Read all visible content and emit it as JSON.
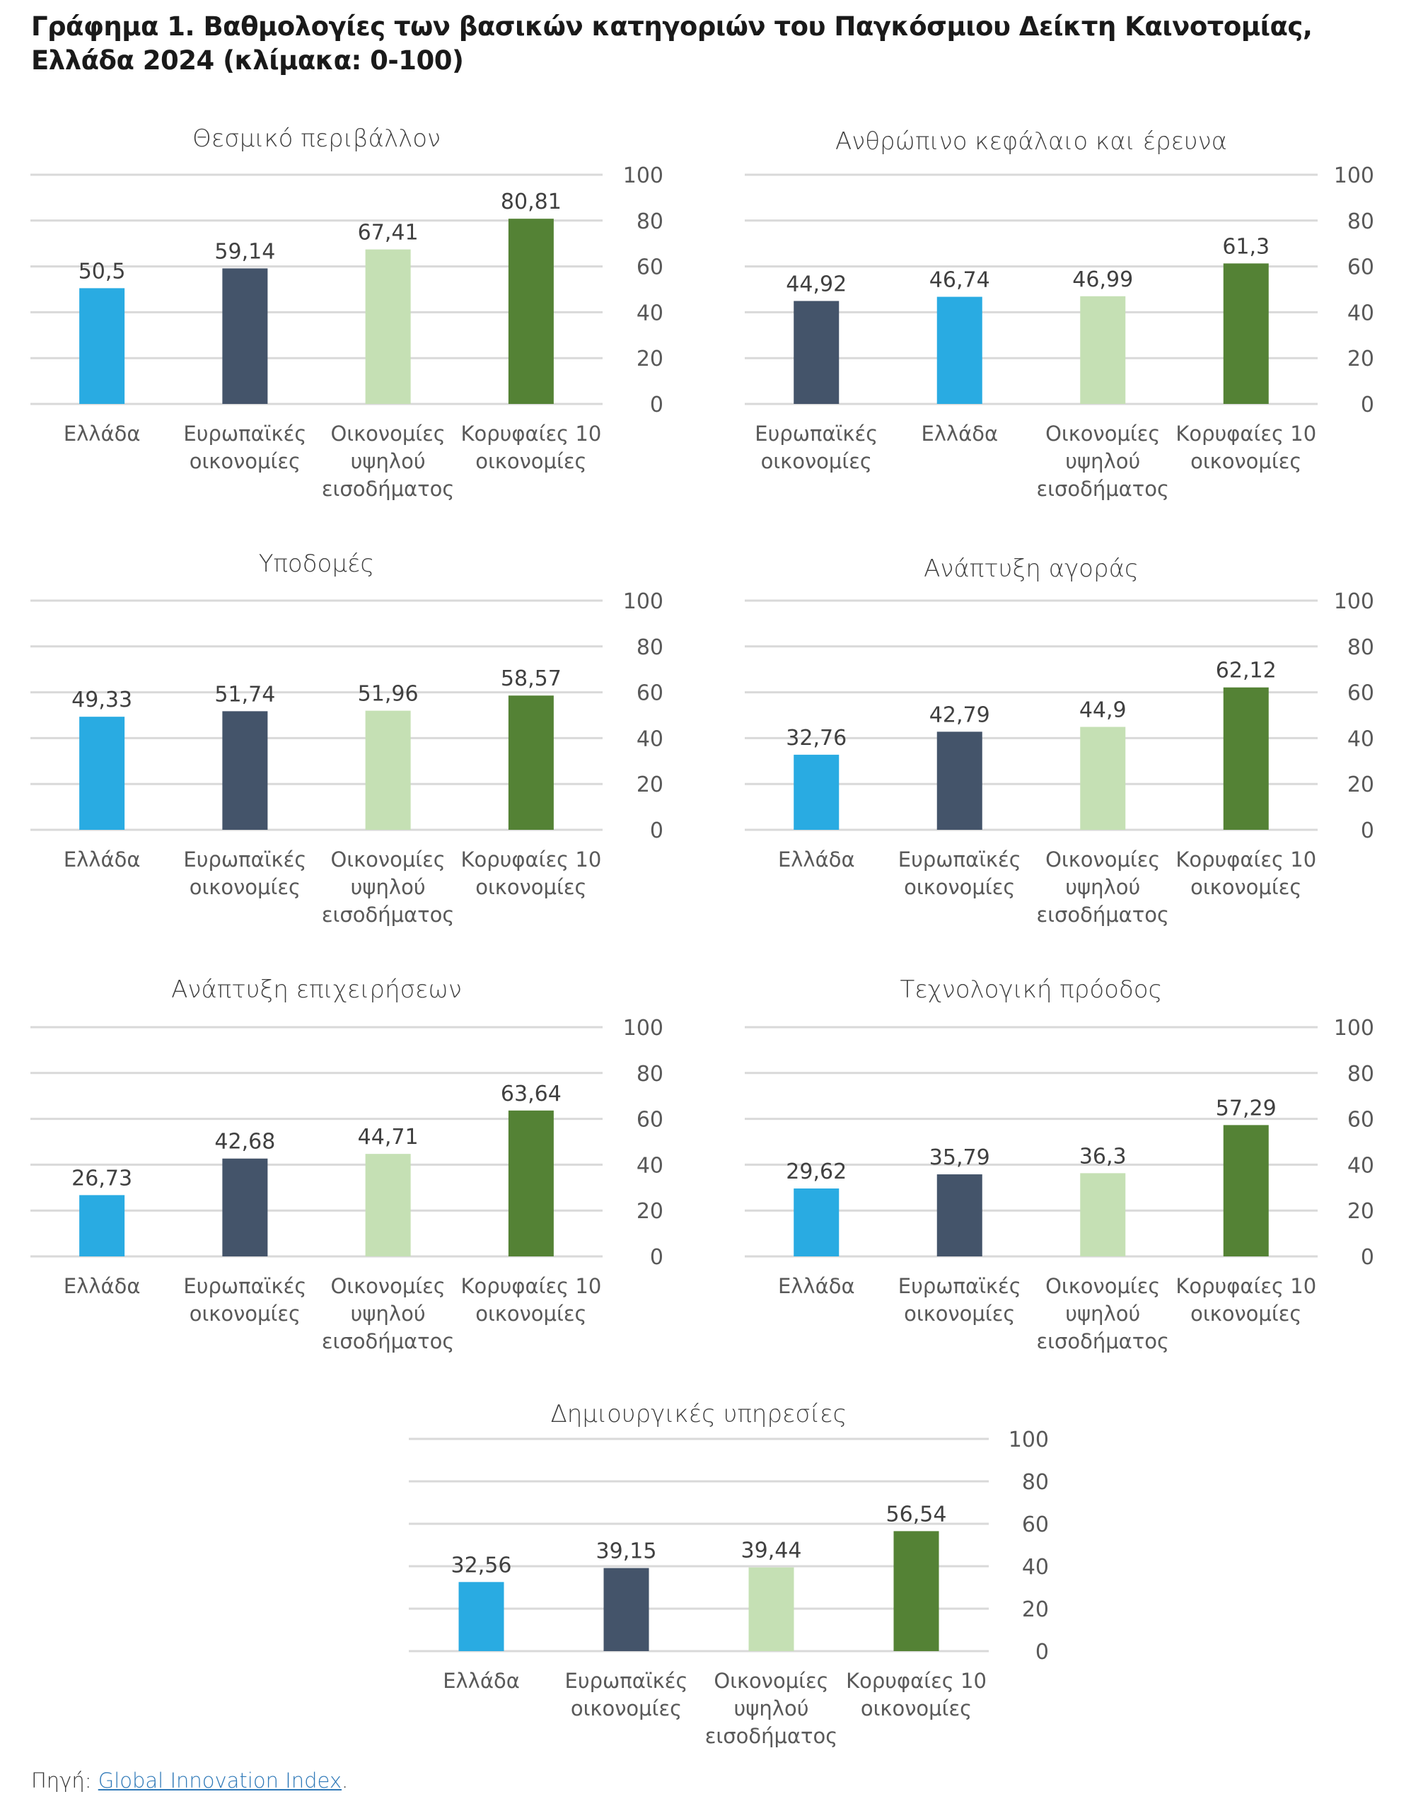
{
  "figure": {
    "title_line1": "Γράφημα 1. Βαθμολογίες των βασικών κατηγοριών του Παγκόσμιου Δείκτη Καινοτομίας,",
    "title_line2": "Ελλάδα 2024 (κλίμακα: 0-100)",
    "source_label": "Πηγή:",
    "source_link": "Global Innovation Index",
    "source_suffix": "."
  },
  "colors": {
    "Ελλάδα": "#29abe2",
    "Ευρωπαϊκές οικονομίες": "#44546a",
    "Οικονομίες υψηλού εισοδήματος": "#c5e0b4",
    "Κορυφαίες 10 οικονομίες": "#548235",
    "gridline": "#d9d9d9",
    "text": "#404040"
  },
  "chart_data": [
    {
      "type": "bar",
      "title": "Θεσμικό περιβάλλον",
      "categories": [
        [
          "Ελλάδα"
        ],
        [
          "Ευρωπαϊκές",
          "οικονομίες"
        ],
        [
          "Οικονομίες",
          "υψηλού",
          "εισοδήματος"
        ],
        [
          "Κορυφαίες 10",
          "οικονομίες"
        ]
      ],
      "series_keys": [
        "Ελλάδα",
        "Ευρωπαϊκές οικονομίες",
        "Οικονομίες υψηλού εισοδήματος",
        "Κορυφαίες 10 οικονομίες"
      ],
      "values": [
        50.5,
        59.14,
        67.41,
        80.81
      ],
      "value_labels": [
        "50,5",
        "59,14",
        "67,41",
        "80,81"
      ],
      "ylim": [
        0,
        100
      ],
      "yticks": [
        0,
        20,
        40,
        60,
        80,
        100
      ],
      "yaxis_position": "right",
      "grid": true
    },
    {
      "type": "bar",
      "title": "Ανθρώπινο κεφάλαιο και έρευνα",
      "categories": [
        [
          "Ευρωπαϊκές",
          "οικονομίες"
        ],
        [
          "Ελλάδα"
        ],
        [
          "Οικονομίες",
          "υψηλού",
          "εισοδήματος"
        ],
        [
          "Κορυφαίες 10",
          "οικονομίες"
        ]
      ],
      "series_keys": [
        "Ευρωπαϊκές οικονομίες",
        "Ελλάδα",
        "Οικονομίες υψηλού εισοδήματος",
        "Κορυφαίες 10 οικονομίες"
      ],
      "values": [
        44.92,
        46.74,
        46.99,
        61.3
      ],
      "value_labels": [
        "44,92",
        "46,74",
        "46,99",
        "61,3"
      ],
      "ylim": [
        0,
        100
      ],
      "yticks": [
        0,
        20,
        40,
        60,
        80,
        100
      ],
      "yaxis_position": "right",
      "grid": true
    },
    {
      "type": "bar",
      "title": "Υποδομές",
      "categories": [
        [
          "Ελλάδα"
        ],
        [
          "Ευρωπαϊκές",
          "οικονομίες"
        ],
        [
          "Οικονομίες",
          "υψηλού",
          "εισοδήματος"
        ],
        [
          "Κορυφαίες 10",
          "οικονομίες"
        ]
      ],
      "series_keys": [
        "Ελλάδα",
        "Ευρωπαϊκές οικονομίες",
        "Οικονομίες υψηλού εισοδήματος",
        "Κορυφαίες 10 οικονομίες"
      ],
      "values": [
        49.33,
        51.74,
        51.96,
        58.57
      ],
      "value_labels": [
        "49,33",
        "51,74",
        "51,96",
        "58,57"
      ],
      "ylim": [
        0,
        100
      ],
      "yticks": [
        0,
        20,
        40,
        60,
        80,
        100
      ],
      "yaxis_position": "right",
      "grid": true
    },
    {
      "type": "bar",
      "title": "Ανάπτυξη αγοράς",
      "categories": [
        [
          "Ελλάδα"
        ],
        [
          "Ευρωπαϊκές",
          "οικονομίες"
        ],
        [
          "Οικονομίες",
          "υψηλού",
          "εισοδήματος"
        ],
        [
          "Κορυφαίες 10",
          "οικονομίες"
        ]
      ],
      "series_keys": [
        "Ελλάδα",
        "Ευρωπαϊκές οικονομίες",
        "Οικονομίες υψηλού εισοδήματος",
        "Κορυφαίες 10 οικονομίες"
      ],
      "values": [
        32.76,
        42.79,
        44.9,
        62.12
      ],
      "value_labels": [
        "32,76",
        "42,79",
        "44,9",
        "62,12"
      ],
      "ylim": [
        0,
        100
      ],
      "yticks": [
        0,
        20,
        40,
        60,
        80,
        100
      ],
      "yaxis_position": "right",
      "grid": true
    },
    {
      "type": "bar",
      "title": "Ανάπτυξη επιχειρήσεων",
      "categories": [
        [
          "Ελλάδα"
        ],
        [
          "Ευρωπαϊκές",
          "οικονομίες"
        ],
        [
          "Οικονομίες",
          "υψηλού",
          "εισοδήματος"
        ],
        [
          "Κορυφαίες 10",
          "οικονομίες"
        ]
      ],
      "series_keys": [
        "Ελλάδα",
        "Ευρωπαϊκές οικονομίες",
        "Οικονομίες υψηλού εισοδήματος",
        "Κορυφαίες 10 οικονομίες"
      ],
      "values": [
        26.73,
        42.68,
        44.71,
        63.64
      ],
      "value_labels": [
        "26,73",
        "42,68",
        "44,71",
        "63,64"
      ],
      "ylim": [
        0,
        100
      ],
      "yticks": [
        0,
        20,
        40,
        60,
        80,
        100
      ],
      "yaxis_position": "right",
      "grid": true
    },
    {
      "type": "bar",
      "title": "Τεχνολογική πρόοδος",
      "categories": [
        [
          "Ελλάδα"
        ],
        [
          "Ευρωπαϊκές",
          "οικονομίες"
        ],
        [
          "Οικονομίες",
          "υψηλού",
          "εισοδήματος"
        ],
        [
          "Κορυφαίες 10",
          "οικονομίες"
        ]
      ],
      "series_keys": [
        "Ελλάδα",
        "Ευρωπαϊκές οικονομίες",
        "Οικονομίες υψηλού εισοδήματος",
        "Κορυφαίες 10 οικονομίες"
      ],
      "values": [
        29.62,
        35.79,
        36.3,
        57.29
      ],
      "value_labels": [
        "29,62",
        "35,79",
        "36,3",
        "57,29"
      ],
      "ylim": [
        0,
        100
      ],
      "yticks": [
        0,
        20,
        40,
        60,
        80,
        100
      ],
      "yaxis_position": "right",
      "grid": true
    },
    {
      "type": "bar",
      "title": "Δημιουργικές υπηρεσίες",
      "categories": [
        [
          "Ελλάδα"
        ],
        [
          "Ευρωπαϊκές",
          "οικονομίες"
        ],
        [
          "Οικονομίες",
          "υψηλού",
          "εισοδήματος"
        ],
        [
          "Κορυφαίες 10",
          "οικονομίες"
        ]
      ],
      "series_keys": [
        "Ελλάδα",
        "Ευρωπαϊκές οικονομίες",
        "Οικονομίες υψηλού εισοδήματος",
        "Κορυφαίες 10 οικονομίες"
      ],
      "values": [
        32.56,
        39.15,
        39.44,
        56.54
      ],
      "value_labels": [
        "32,56",
        "39,15",
        "39,44",
        "56,54"
      ],
      "ylim": [
        0,
        100
      ],
      "yticks": [
        0,
        20,
        40,
        60,
        80,
        100
      ],
      "yaxis_position": "right",
      "grid": true
    }
  ]
}
